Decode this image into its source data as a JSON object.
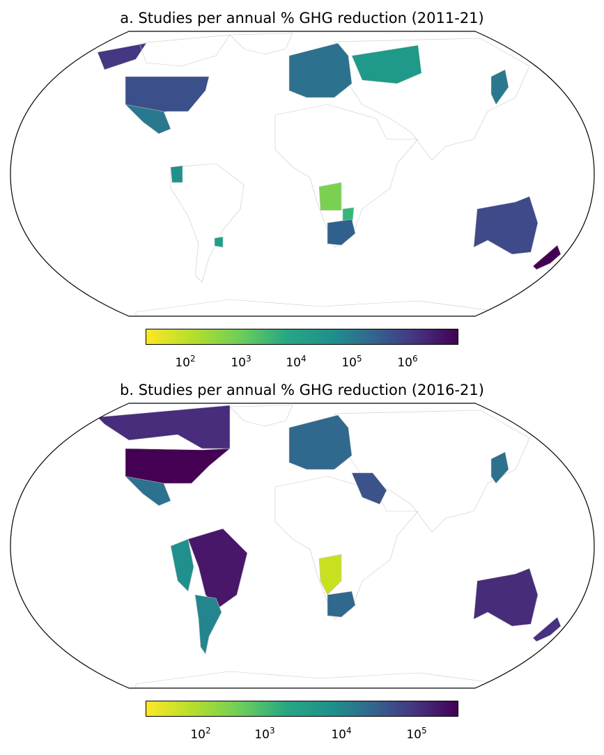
{
  "panels": [
    {
      "title": "a. Studies per annual % GHG reduction (2011-21)",
      "colorbar": {
        "colormap": "viridis_r",
        "scale": "log",
        "ticks": [
          {
            "base": "10",
            "exp": "2"
          },
          {
            "base": "10",
            "exp": "3"
          },
          {
            "base": "10",
            "exp": "4"
          },
          {
            "base": "10",
            "exp": "5"
          },
          {
            "base": "10",
            "exp": "6"
          }
        ]
      },
      "countries": [
        {
          "name": "Canada",
          "color": "#453781"
        },
        {
          "name": "United States",
          "color": "#3b4f8a"
        },
        {
          "name": "Mexico",
          "color": "#2a788e"
        },
        {
          "name": "Ecuador",
          "color": "#21908d"
        },
        {
          "name": "Uruguay",
          "color": "#1f9e89"
        },
        {
          "name": "Europe",
          "color": "#2c718e"
        },
        {
          "name": "Russia",
          "color": "#1f9a8a"
        },
        {
          "name": "Japan",
          "color": "#2a788e"
        },
        {
          "name": "Angola",
          "color": "#7ad151"
        },
        {
          "name": "Mozambique",
          "color": "#35b779"
        },
        {
          "name": "South Africa",
          "color": "#30608d"
        },
        {
          "name": "Australia",
          "color": "#3e4a89"
        },
        {
          "name": "New Zealand",
          "color": "#440154"
        }
      ]
    },
    {
      "title": "b. Studies per annual % GHG reduction (2016-21)",
      "colorbar": {
        "colormap": "viridis_r",
        "scale": "log",
        "ticks": [
          {
            "base": "10",
            "exp": "2"
          },
          {
            "base": "10",
            "exp": "3"
          },
          {
            "base": "10",
            "exp": "4"
          },
          {
            "base": "10",
            "exp": "5"
          }
        ]
      },
      "countries": [
        {
          "name": "Canada",
          "color": "#472d7b"
        },
        {
          "name": "United States",
          "color": "#440154"
        },
        {
          "name": "Mexico",
          "color": "#2c718e"
        },
        {
          "name": "Peru",
          "color": "#21908d"
        },
        {
          "name": "Brazil",
          "color": "#481769"
        },
        {
          "name": "Argentina",
          "color": "#25858e"
        },
        {
          "name": "Europe",
          "color": "#31688e"
        },
        {
          "name": "Saudi Arabia",
          "color": "#3b528b"
        },
        {
          "name": "Japan",
          "color": "#2c718e"
        },
        {
          "name": "Namibia",
          "color": "#c8e020"
        },
        {
          "name": "South Africa",
          "color": "#31688e"
        },
        {
          "name": "Australia",
          "color": "#472c7a"
        },
        {
          "name": "New Zealand",
          "color": "#46327e"
        }
      ]
    }
  ]
}
